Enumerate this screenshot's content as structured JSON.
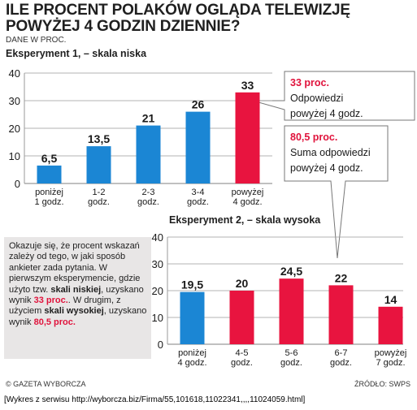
{
  "title_line1": "ILE PROCENT POLAKÓW OGLĄDA TELEWIZJĘ",
  "title_line2": "POWYŻEJ 4 GODZIN DZIENNIE?",
  "subtitle": "DANE W PROC.",
  "colors": {
    "blue": "#1b86d4",
    "red": "#e8143f",
    "text_red": "#e0133c",
    "note_bg": "#e8e6e6"
  },
  "chart_data": [
    {
      "type": "bar",
      "title": "Eksperyment 1, – skala niska",
      "categories": [
        [
          "poniżej",
          "1 godz."
        ],
        [
          "1-2",
          "godz."
        ],
        [
          "2-3",
          "godz."
        ],
        [
          "3-4",
          "godz."
        ],
        [
          "powyżej",
          "4 godz."
        ]
      ],
      "values": [
        6.5,
        13.5,
        21,
        26,
        33
      ],
      "value_labels": [
        "6,5",
        "13,5",
        "21",
        "26",
        "33"
      ],
      "highlight_index": 4,
      "ylim": [
        0,
        40
      ],
      "yticks": [
        0,
        10,
        20,
        30,
        40
      ],
      "grid": true
    },
    {
      "type": "bar",
      "title": "Eksperyment 2, – skala wysoka",
      "categories": [
        [
          "poniżej",
          "4 godz."
        ],
        [
          "4-5",
          "godz."
        ],
        [
          "5-6",
          "godz."
        ],
        [
          "6-7",
          "godz."
        ],
        [
          "powyżej",
          "7 godz."
        ]
      ],
      "values": [
        19.5,
        20,
        24.5,
        22,
        14
      ],
      "value_labels": [
        "19,5",
        "20",
        "24,5",
        "22",
        "14"
      ],
      "blue_indices": [
        0
      ],
      "ylim": [
        0,
        40
      ],
      "yticks": [
        0,
        10,
        20,
        30,
        40
      ],
      "grid": true
    }
  ],
  "callout1": {
    "highlight": "33 proc.",
    "line1": "Odpowiedzi",
    "line2": "powyżej 4 godz."
  },
  "callout2": {
    "highlight": "80,5 proc.",
    "line1": "Suma odpowiedzi",
    "line2": "powyżej 4 godz."
  },
  "note": {
    "part1": "Okazuje się, że procent wskazań zależy od tego, w jaki sposób ankieter zada pytania. W pierwszym eksperymencie, gdzie użyto tzw.",
    "bold1": "skali niskiej",
    "part2": ", uzyskano wynik",
    "red1": "33 proc.",
    "part3": "W drugim, z użyciem",
    "bold2": "skali wysokiej",
    "part4": ", uzyskano wynik",
    "red2": "80,5 proc."
  },
  "footer_left": "© GAZETA WYBORCZA",
  "footer_right": "ŹRÓDŁO: SWPS",
  "source": "[Wykres z serwisu http://wyborcza.biz/Firma/55,101618,11022341,,,,11024059.html]"
}
